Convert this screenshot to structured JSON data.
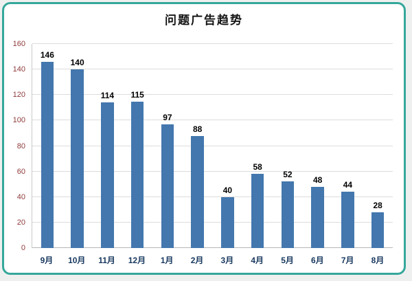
{
  "chart_data": {
    "type": "bar",
    "title": "问题广告趋势",
    "categories": [
      "9月",
      "10月",
      "11月",
      "12月",
      "1月",
      "2月",
      "3月",
      "4月",
      "5月",
      "6月",
      "7月",
      "8月"
    ],
    "values": [
      146,
      140,
      114,
      115,
      97,
      88,
      40,
      58,
      52,
      48,
      44,
      28
    ],
    "xlabel": "",
    "ylabel": "",
    "ylim": [
      0,
      160
    ],
    "ytick_step": 20,
    "grid": true,
    "legend": "none",
    "bar_color": "#4377ae",
    "value_label_color": "#000000",
    "y_tick_color": "#8f3b3b",
    "x_tick_color": "#17375e",
    "frame_border_color": "#35a79b"
  }
}
